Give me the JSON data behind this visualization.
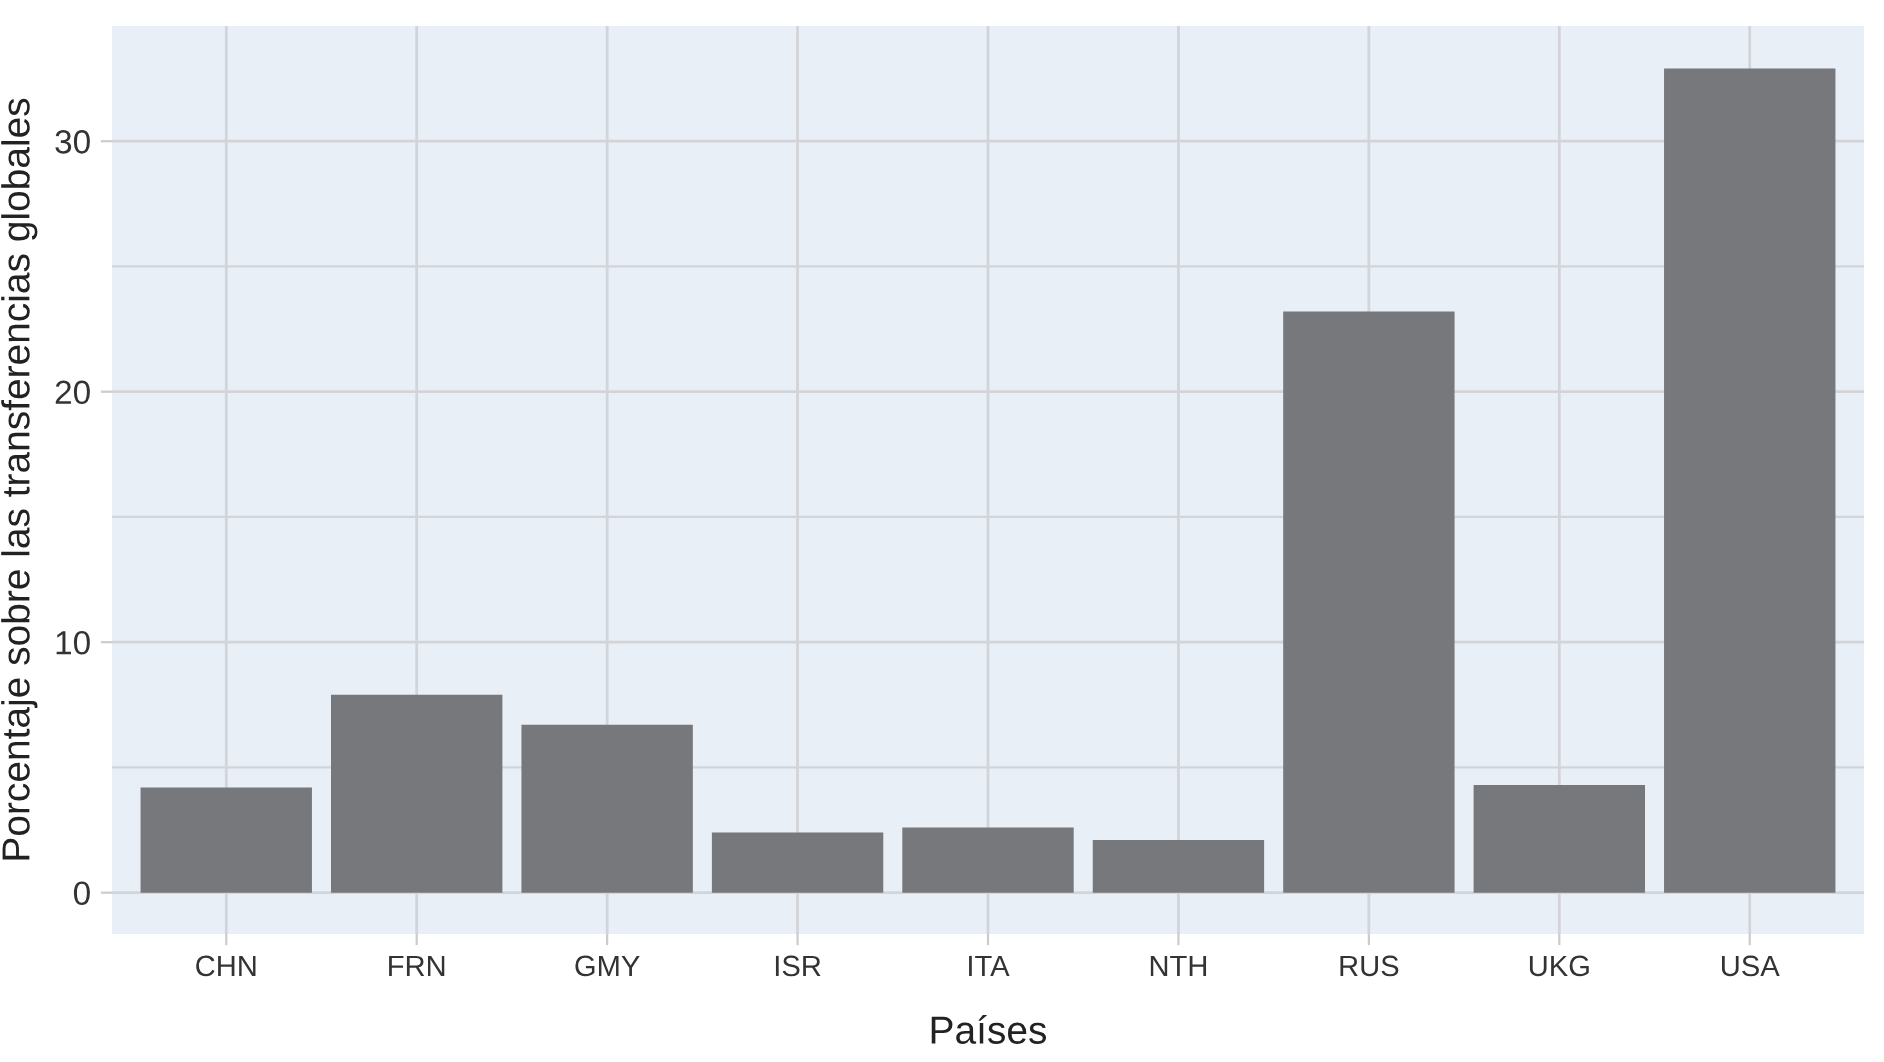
{
  "chart_data": {
    "type": "bar",
    "xlabel": "Países",
    "ylabel": "Porcentaje sobre las transferencias globales",
    "categories": [
      "CHN",
      "FRN",
      "GMY",
      "ISR",
      "ITA",
      "NTH",
      "RUS",
      "UKG",
      "USA"
    ],
    "values": [
      4.2,
      7.9,
      6.7,
      2.4,
      2.6,
      2.1,
      23.2,
      4.3,
      32.9
    ],
    "color": "#77787c",
    "ylim": [
      -1.65,
      34.6
    ],
    "yticks": [
      0,
      10,
      20,
      30
    ],
    "grid": true
  }
}
